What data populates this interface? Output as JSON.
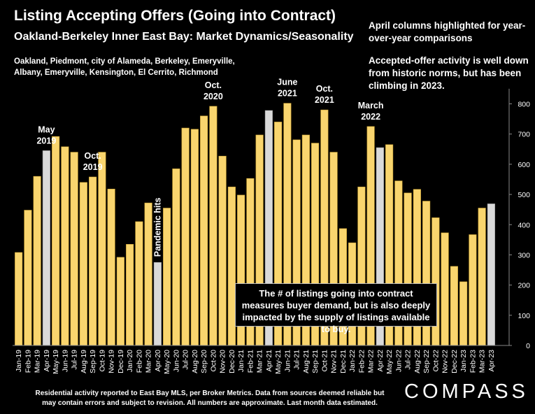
{
  "title": "Listing Accepting Offers (Going into Contract)",
  "subtitle": "Oakland-Berkeley Inner East Bay: Market Dynamics/Seasonality",
  "areas": "Oakland, Piedmont, city of Alameda, Berkeley, Emeryville, Albany, Emeryville, Kensington, El Cerrito, Richmond",
  "note_april": "April columns highlighted for year-over-year comparisons",
  "note_activity": "Accepted-offer activity is well down from historic norms, but has been climbing in 2023.",
  "callout": "The # of listings going into contract measures buyer demand, but is also deeply impacted by the supply of listings available to buy.",
  "footer": "Residential activity reported to East Bay MLS, per Broker Metrics. Data from sources deemed reliable but may contain errors and subject to revision. All numbers are approximate. Last month data estimated.",
  "brand": "COMPASS",
  "colors": {
    "bar": "#F9D56E",
    "bar_edge": "#C9A030",
    "april": "#D9D9D9",
    "background": "#000000"
  },
  "chart_data": {
    "type": "bar",
    "categories": [
      "Jan-19",
      "Feb-19",
      "Mar-19",
      "Apr-19",
      "May-19",
      "Jun-19",
      "Jul-19",
      "Aug-19",
      "Sep-19",
      "Oct-19",
      "Nov-19",
      "Dec-19",
      "Jan-20",
      "Feb-20",
      "Mar-20",
      "Apr-20",
      "May-20",
      "Jun-20",
      "Jul-20",
      "Aug-20",
      "Sep-20",
      "Oct-20",
      "Nov-20",
      "Dec-20",
      "Jan-21",
      "Feb-21",
      "Mar-21",
      "Apr-21",
      "May-21",
      "Jun-21",
      "Jul-21",
      "Aug-21",
      "Sep-21",
      "Oct-21",
      "Nov-21",
      "Dec-21",
      "Jan-22",
      "Feb-22",
      "Mar-22",
      "Apr-22",
      "May-22",
      "Jun-22",
      "Jul-22",
      "Aug-22",
      "Sep-22",
      "Oct-22",
      "Nov-22",
      "Dec-22",
      "Jan-23",
      "Feb-23",
      "Mar-23",
      "Apr-23"
    ],
    "values": [
      308,
      448,
      560,
      645,
      692,
      658,
      640,
      540,
      558,
      640,
      518,
      292,
      335,
      410,
      472,
      275,
      455,
      585,
      720,
      716,
      760,
      792,
      627,
      525,
      498,
      553,
      697,
      778,
      740,
      802,
      681,
      697,
      670,
      780,
      640,
      387,
      340,
      525,
      725,
      655,
      665,
      545,
      505,
      517,
      478,
      423,
      373,
      262,
      211,
      367,
      455,
      469
    ],
    "highlight": [
      "Apr-19",
      "Apr-20",
      "Apr-21",
      "Apr-22",
      "Apr-23"
    ],
    "ylim": [
      0,
      850
    ],
    "yticks": [
      0,
      100,
      200,
      300,
      400,
      500,
      600,
      700,
      800
    ],
    "yaxis_side": "right",
    "annotations": [
      {
        "category": "Apr-19",
        "label": "May 2019",
        "lines": [
          "May",
          "2019"
        ]
      },
      {
        "category": "Sep-19",
        "label": "Oct. 2019",
        "lines": [
          "Oct.",
          "2019"
        ]
      },
      {
        "category": "Apr-20",
        "label": "Pandemic hits",
        "lines": [
          "Pandemic hits"
        ],
        "rotated": true
      },
      {
        "category": "Oct-20",
        "label": "Oct. 2020",
        "lines": [
          "Oct.",
          "2020"
        ]
      },
      {
        "category": "Jun-21",
        "label": "June 2021",
        "lines": [
          "June",
          "2021"
        ]
      },
      {
        "category": "Oct-21",
        "label": "Oct. 2021",
        "lines": [
          "Oct.",
          "2021"
        ]
      },
      {
        "category": "Mar-22",
        "label": "March 2022",
        "lines": [
          "March",
          "2022"
        ]
      }
    ]
  }
}
